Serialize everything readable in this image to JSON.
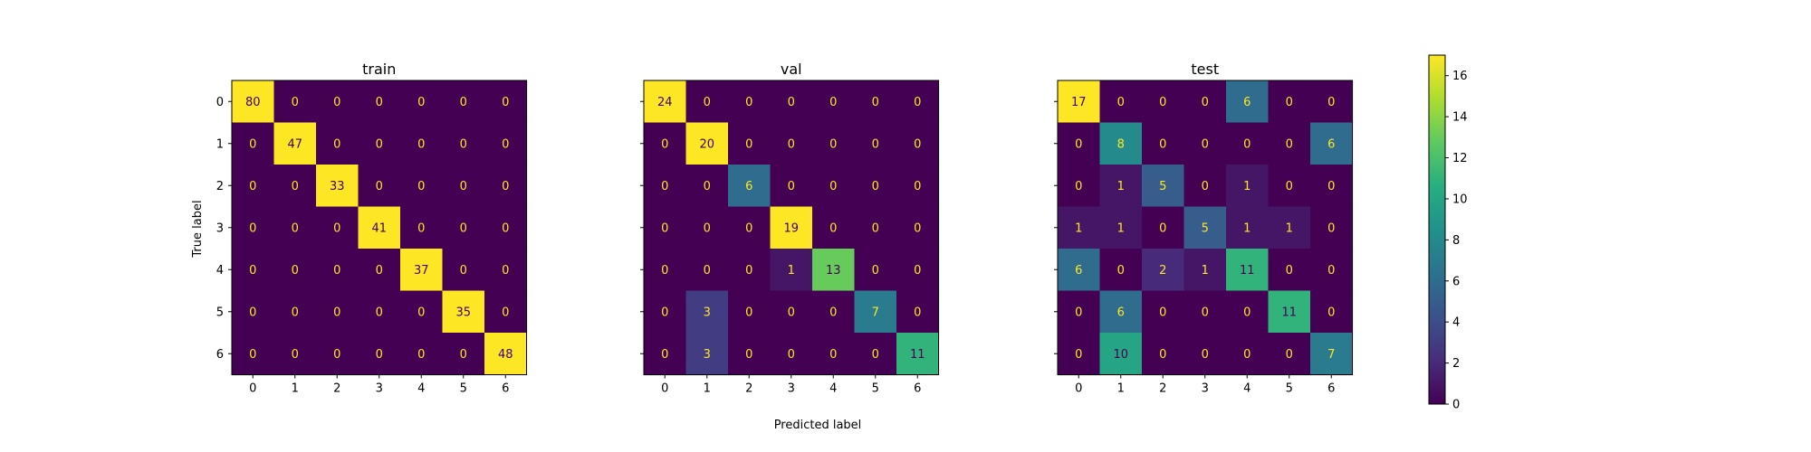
{
  "chart_data": {
    "type": "heatmap",
    "xlabel": "Predicted label",
    "ylabel": "True label",
    "classes": [
      "0",
      "1",
      "2",
      "3",
      "4",
      "5",
      "6"
    ],
    "vmin": 0,
    "vmax": 17,
    "colormap": "viridis",
    "colorbar_ticks": [
      "0",
      "2",
      "4",
      "6",
      "8",
      "10",
      "12",
      "14",
      "16"
    ],
    "panels": [
      {
        "title": "train",
        "matrix": [
          [
            80,
            0,
            0,
            0,
            0,
            0,
            0
          ],
          [
            0,
            47,
            0,
            0,
            0,
            0,
            0
          ],
          [
            0,
            0,
            33,
            0,
            0,
            0,
            0
          ],
          [
            0,
            0,
            0,
            41,
            0,
            0,
            0
          ],
          [
            0,
            0,
            0,
            0,
            37,
            0,
            0
          ],
          [
            0,
            0,
            0,
            0,
            0,
            35,
            0
          ],
          [
            0,
            0,
            0,
            0,
            0,
            0,
            48
          ]
        ]
      },
      {
        "title": "val",
        "matrix": [
          [
            24,
            0,
            0,
            0,
            0,
            0,
            0
          ],
          [
            0,
            20,
            0,
            0,
            0,
            0,
            0
          ],
          [
            0,
            0,
            6,
            0,
            0,
            0,
            0
          ],
          [
            0,
            0,
            0,
            19,
            0,
            0,
            0
          ],
          [
            0,
            0,
            0,
            1,
            13,
            0,
            0
          ],
          [
            0,
            3,
            0,
            0,
            0,
            7,
            0
          ],
          [
            0,
            3,
            0,
            0,
            0,
            0,
            11
          ]
        ]
      },
      {
        "title": "test",
        "matrix": [
          [
            17,
            0,
            0,
            0,
            6,
            0,
            0
          ],
          [
            0,
            8,
            0,
            0,
            0,
            0,
            6
          ],
          [
            0,
            1,
            5,
            0,
            1,
            0,
            0
          ],
          [
            1,
            1,
            0,
            5,
            1,
            1,
            0
          ],
          [
            6,
            0,
            2,
            1,
            11,
            0,
            0
          ],
          [
            0,
            6,
            0,
            0,
            0,
            11,
            0
          ],
          [
            0,
            10,
            0,
            0,
            0,
            0,
            7
          ]
        ]
      }
    ]
  }
}
